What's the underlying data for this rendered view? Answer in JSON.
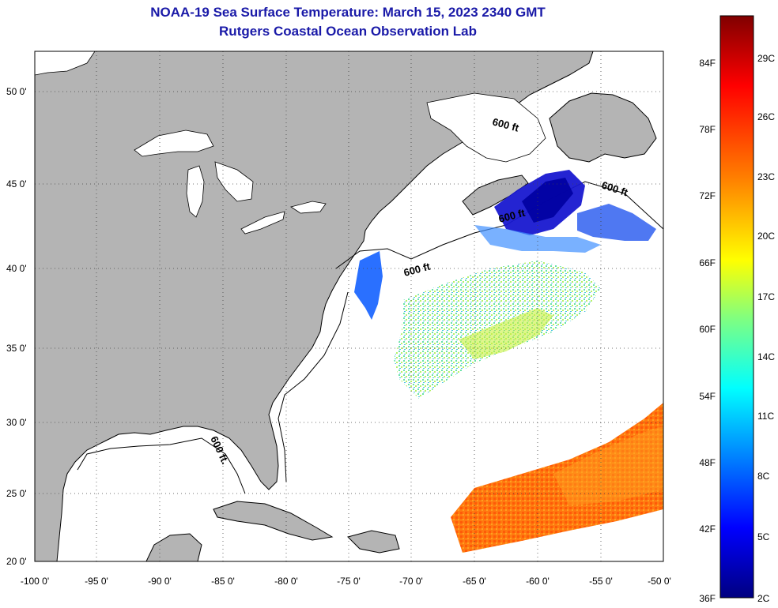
{
  "title": {
    "line1": "NOAA-19 Sea Surface Temperature:  March 15, 2023 2340 GMT",
    "line2": "Rutgers Coastal Ocean Observation Lab"
  },
  "map": {
    "lon_range": [
      -100,
      -50
    ],
    "lat_range": [
      20,
      52.5
    ],
    "lon_ticks": [
      "-100 0'",
      "-95 0'",
      "-90 0'",
      "-85 0'",
      "-80 0'",
      "-75 0'",
      "-70 0'",
      "-65 0'",
      "-60 0'",
      "-55 0'",
      "-50 0'"
    ],
    "lat_ticks": [
      "20 0'",
      "25 0'",
      "30 0'",
      "35 0'",
      "40 0'",
      "45 0'",
      "50 0'"
    ],
    "contour_labels": [
      "600 ft",
      "600 ft",
      "600 ft",
      "600 ft",
      "600 ft."
    ],
    "land_color": "#b4b4b4",
    "ocean_color": "#ffffff"
  },
  "colorbar": {
    "fahrenheit_labels": [
      "84F",
      "78F",
      "72F",
      "66F",
      "60F",
      "54F",
      "48F",
      "42F",
      "36F"
    ],
    "celsius_labels": [
      "29C",
      "26C",
      "23C",
      "20C",
      "17C",
      "14C",
      "11C",
      "8C",
      "5C",
      "2C"
    ],
    "colors": [
      "#800000",
      "#ff0000",
      "#ff8000",
      "#ffff00",
      "#80ff80",
      "#00ffff",
      "#0080ff",
      "#0000ff",
      "#000080"
    ]
  }
}
